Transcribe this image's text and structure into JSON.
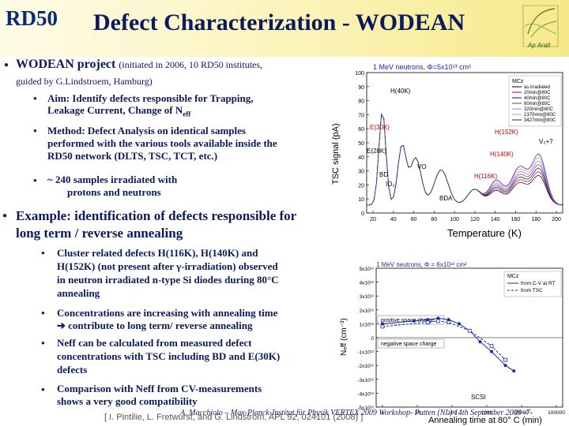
{
  "header": {
    "brand": "RD50",
    "title": "Defect Characterization - WODEAN"
  },
  "bullets": {
    "b1_strong": "WODEAN project",
    "b1_small": "(initiated in 2006, 10 RD50 institutes,",
    "b1_line2": "guided by G.Lindstroem, Hamburg)",
    "aim_label": "Aim:",
    "aim_text": "Identify defects responsible for Trapping,",
    "aim_line2": "Leakage Current, Change of N",
    "aim_sub": "eff",
    "method_label": "Method:",
    "method_text": "Defect Analysis on identical samples",
    "method_line2": "performed with the various tools available inside the",
    "method_line3": "RD50 network (DLTS, TSC, TCT, etc.)",
    "samples": "~ 240 samples irradiated with",
    "samples_line2": "protons and neutrons",
    "example_line1": "Example: identification of defects responsible for",
    "example_line2": "long term / reverse annealing",
    "c1_l1": "Cluster related defects H(116K), H(140K) and",
    "c1_l2": "H(152K) (not present after γ-irradiation) observed",
    "c1_l3": "in neutron irradiated n-type Si diodes during 80°C",
    "c1_l4": "annealing",
    "c2_l1": "Concentrations are increasing with annealing time",
    "c2_l2": "➔ contribute to long term/ reverse annealing",
    "c3_l1": "Neff can be calculated from measured defect",
    "c3_l2": "concentrations with TSC including BD and E(30K)",
    "c3_l3": "defects",
    "c4_l1": "Comparison with Neff from CV-measurements",
    "c4_l2": "shows a very good compatibility"
  },
  "tsc_plot": {
    "title": "1 MeV neutrons, Φ=5x10¹³ cm²",
    "ylabel": "TSC signal (pA)",
    "xlabel": "Temperature (K)",
    "yticks": [
      "0",
      "10",
      "20",
      "30",
      "40",
      "50",
      "60",
      "70",
      "80",
      "90",
      "100"
    ],
    "xticks": [
      "20",
      "40",
      "60",
      "80",
      "100",
      "120",
      "140",
      "160",
      "180",
      "200"
    ],
    "legend_title": "MCz",
    "legend": [
      "as irradiated",
      "20min@80C",
      "40min@80C",
      "80min@80C",
      "320min@80C",
      "1370min@80C",
      "3427min@80C"
    ],
    "labels": [
      "H(40K)",
      "E(30K)",
      "E(28K)",
      "IO₂",
      "BD",
      "VO",
      "BDA",
      "H(152K)",
      "H(140K)",
      "H(116K)",
      "V₂+?"
    ],
    "colors": {
      "series1": "#000000",
      "series2": "#c00000",
      "series3": "#0000c0",
      "series4": "#7a4a20",
      "series5": "#8080ff",
      "series6": "#e080e0",
      "series7": "#202070"
    }
  },
  "neff_plot": {
    "title": "1 MeV neutrons, Φ = 6x10¹³ cm²",
    "ylabel": "Nₑff (cm⁻³)",
    "xlabel": "Annealing time at 80° C (min)",
    "yticks": [
      "5x10¹²",
      "4x10¹²",
      "3x10¹²",
      "2x10¹²",
      "1x10¹²",
      "0",
      "-1x10¹²",
      "-2x10¹²",
      "-3x10¹²",
      "-4x10¹²",
      "-5x10¹²"
    ],
    "xticks": [
      "1",
      "10",
      "100",
      "1000",
      "10000",
      "100000"
    ],
    "legend_title": "MCz",
    "legend": [
      "from C-V at RT",
      "from TSC"
    ],
    "region_pos": "positive space charge",
    "region_neg": "negative space charge",
    "scsi": "SCSI",
    "chart_data": {
      "type": "line",
      "series": [
        {
          "name": "from C-V at RT",
          "x": [
            1,
            8,
            20,
            40,
            80,
            160,
            320,
            640,
            1370,
            3427,
            6000
          ],
          "y": [
            1.0,
            1.2,
            1.3,
            1.4,
            1.3,
            1.0,
            0.5,
            -0.3,
            -1.0,
            -2.0,
            -2.4
          ]
        },
        {
          "name": "from TSC",
          "x": [
            1,
            20,
            40,
            80,
            320,
            1370,
            3427
          ],
          "y": [
            0.8,
            1.1,
            1.2,
            1.1,
            0.5,
            -0.6,
            -1.6
          ]
        }
      ]
    }
  },
  "footer": {
    "text": "A. Macchiolo – Max-Planck-Institut für Physik     VERTEX 2009 Workshop- Putten (NL) 14th September 2009   -7-",
    "cite": "[ I. Pintilie, L. Fretwurst, and G. Lindstrom, APL 92, 024101 (2008) ]"
  }
}
